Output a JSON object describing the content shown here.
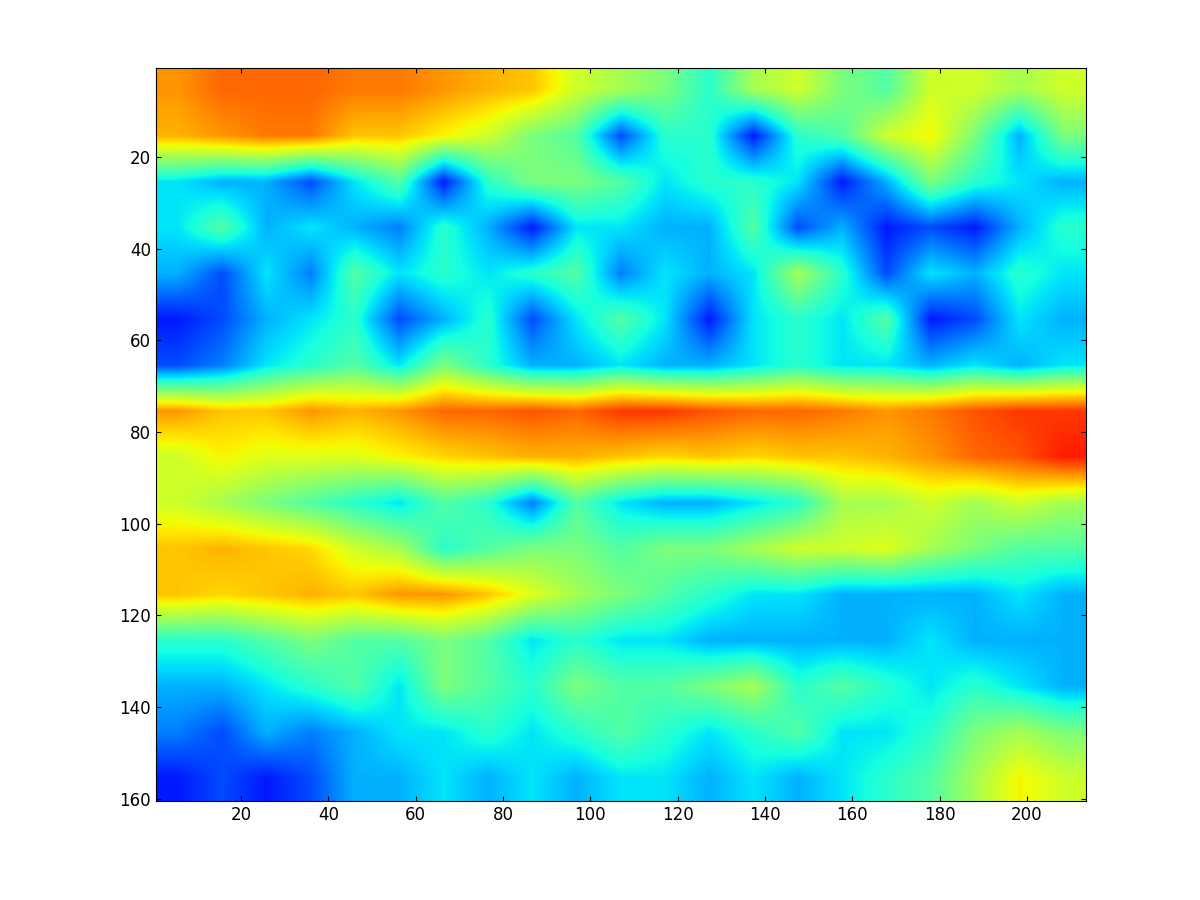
{
  "chart_data": {
    "type": "heatmap",
    "xlim": [
      0.5,
      213.5
    ],
    "ylim": [
      160.5,
      0.5
    ],
    "xticks": [
      20,
      40,
      60,
      80,
      100,
      120,
      140,
      160,
      180,
      200
    ],
    "yticks": [
      20,
      40,
      60,
      80,
      100,
      120,
      140,
      160
    ],
    "color_range": [
      0,
      1
    ],
    "cells": [
      [
        0.75,
        0.8,
        0.8,
        0.8,
        0.78,
        0.78,
        0.75,
        0.72,
        0.7,
        0.6,
        0.55,
        0.5,
        0.4,
        0.55,
        0.6,
        0.5,
        0.45,
        0.6,
        0.6,
        0.55,
        0.6
      ],
      [
        0.72,
        0.75,
        0.78,
        0.78,
        0.7,
        0.7,
        0.65,
        0.6,
        0.5,
        0.45,
        0.2,
        0.4,
        0.4,
        0.15,
        0.4,
        0.45,
        0.6,
        0.65,
        0.5,
        0.3,
        0.5
      ],
      [
        0.35,
        0.3,
        0.3,
        0.2,
        0.35,
        0.45,
        0.15,
        0.4,
        0.5,
        0.5,
        0.45,
        0.35,
        0.4,
        0.4,
        0.35,
        0.15,
        0.3,
        0.5,
        0.4,
        0.35,
        0.3
      ],
      [
        0.35,
        0.45,
        0.3,
        0.35,
        0.3,
        0.25,
        0.4,
        0.3,
        0.15,
        0.35,
        0.35,
        0.3,
        0.3,
        0.45,
        0.2,
        0.3,
        0.15,
        0.2,
        0.15,
        0.3,
        0.4
      ],
      [
        0.3,
        0.2,
        0.35,
        0.25,
        0.45,
        0.35,
        0.4,
        0.35,
        0.4,
        0.45,
        0.25,
        0.35,
        0.3,
        0.35,
        0.55,
        0.4,
        0.2,
        0.35,
        0.3,
        0.4,
        0.35
      ],
      [
        0.15,
        0.2,
        0.3,
        0.35,
        0.4,
        0.2,
        0.3,
        0.4,
        0.2,
        0.35,
        0.45,
        0.35,
        0.15,
        0.35,
        0.4,
        0.35,
        0.45,
        0.15,
        0.2,
        0.35,
        0.3
      ],
      [
        0.2,
        0.25,
        0.35,
        0.4,
        0.45,
        0.35,
        0.5,
        0.4,
        0.3,
        0.3,
        0.35,
        0.3,
        0.3,
        0.35,
        0.4,
        0.35,
        0.35,
        0.3,
        0.35,
        0.3,
        0.35
      ],
      [
        0.75,
        0.7,
        0.7,
        0.75,
        0.72,
        0.75,
        0.8,
        0.8,
        0.82,
        0.8,
        0.85,
        0.85,
        0.82,
        0.8,
        0.8,
        0.78,
        0.75,
        0.78,
        0.82,
        0.85,
        0.85
      ],
      [
        0.6,
        0.65,
        0.62,
        0.62,
        0.62,
        0.65,
        0.68,
        0.7,
        0.72,
        0.72,
        0.7,
        0.68,
        0.7,
        0.68,
        0.7,
        0.7,
        0.72,
        0.75,
        0.8,
        0.82,
        0.88
      ],
      [
        0.6,
        0.55,
        0.5,
        0.45,
        0.4,
        0.35,
        0.45,
        0.4,
        0.25,
        0.45,
        0.35,
        0.3,
        0.3,
        0.35,
        0.4,
        0.55,
        0.55,
        0.6,
        0.55,
        0.6,
        0.55
      ],
      [
        0.7,
        0.72,
        0.7,
        0.68,
        0.6,
        0.55,
        0.4,
        0.45,
        0.5,
        0.5,
        0.45,
        0.5,
        0.5,
        0.55,
        0.6,
        0.6,
        0.62,
        0.55,
        0.5,
        0.45,
        0.45
      ],
      [
        0.7,
        0.68,
        0.7,
        0.72,
        0.7,
        0.75,
        0.75,
        0.7,
        0.62,
        0.55,
        0.5,
        0.45,
        0.4,
        0.35,
        0.35,
        0.3,
        0.3,
        0.3,
        0.3,
        0.35,
        0.3
      ],
      [
        0.4,
        0.4,
        0.45,
        0.5,
        0.45,
        0.45,
        0.5,
        0.45,
        0.35,
        0.4,
        0.35,
        0.35,
        0.3,
        0.3,
        0.3,
        0.3,
        0.3,
        0.35,
        0.3,
        0.3,
        0.3
      ],
      [
        0.3,
        0.3,
        0.35,
        0.4,
        0.45,
        0.35,
        0.5,
        0.45,
        0.4,
        0.5,
        0.45,
        0.45,
        0.5,
        0.55,
        0.4,
        0.45,
        0.4,
        0.35,
        0.4,
        0.35,
        0.3
      ],
      [
        0.25,
        0.2,
        0.3,
        0.25,
        0.3,
        0.35,
        0.35,
        0.4,
        0.35,
        0.4,
        0.45,
        0.4,
        0.35,
        0.4,
        0.45,
        0.35,
        0.35,
        0.4,
        0.5,
        0.55,
        0.5
      ],
      [
        0.15,
        0.2,
        0.15,
        0.2,
        0.3,
        0.3,
        0.35,
        0.3,
        0.35,
        0.3,
        0.35,
        0.35,
        0.3,
        0.35,
        0.3,
        0.35,
        0.4,
        0.45,
        0.55,
        0.65,
        0.6
      ]
    ]
  }
}
